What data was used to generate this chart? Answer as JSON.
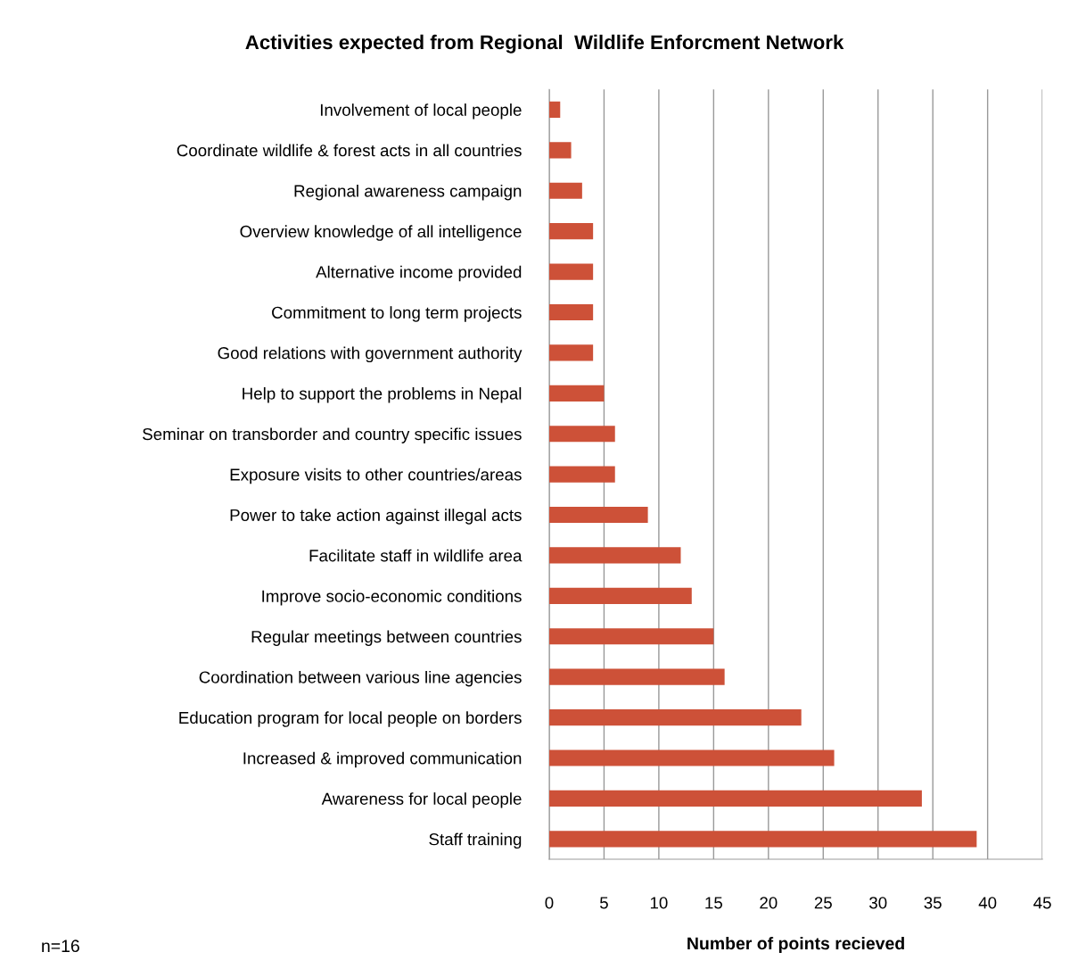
{
  "chart_data": {
    "type": "bar",
    "orientation": "horizontal",
    "title": "Activities expected from Regional  Wildlife Enforcment Network",
    "xlabel": "Number of points recieved",
    "categories": [
      "Involvement of local people",
      "Coordinate wildlife & forest acts in all countries",
      "Regional awareness campaign",
      "Overview knowledge of all intelligence",
      "Alternative income provided",
      "Commitment to long term projects",
      "Good relations with government authority",
      "Help to support the problems in Nepal",
      "Seminar on transborder and country specific issues",
      "Exposure visits to other countries/areas",
      "Power to take action against illegal acts",
      "Facilitate staff in wildlife area",
      "Improve socio-economic conditions",
      "Regular meetings between countries",
      "Coordination between various line agencies",
      "Education program for local people on borders",
      "Increased & improved communication",
      "Awareness for local people",
      "Staff training"
    ],
    "values": [
      1,
      2,
      3,
      4,
      4,
      4,
      4,
      5,
      6,
      6,
      9,
      12,
      13,
      15,
      16,
      23,
      26,
      34,
      39
    ],
    "color": "#cd5138",
    "xlim": [
      0,
      45
    ],
    "xticks": [
      0,
      5,
      10,
      15,
      20,
      25,
      30,
      35,
      40,
      45
    ],
    "grid": "x",
    "legend": false,
    "annotations": [
      "n=16"
    ]
  }
}
